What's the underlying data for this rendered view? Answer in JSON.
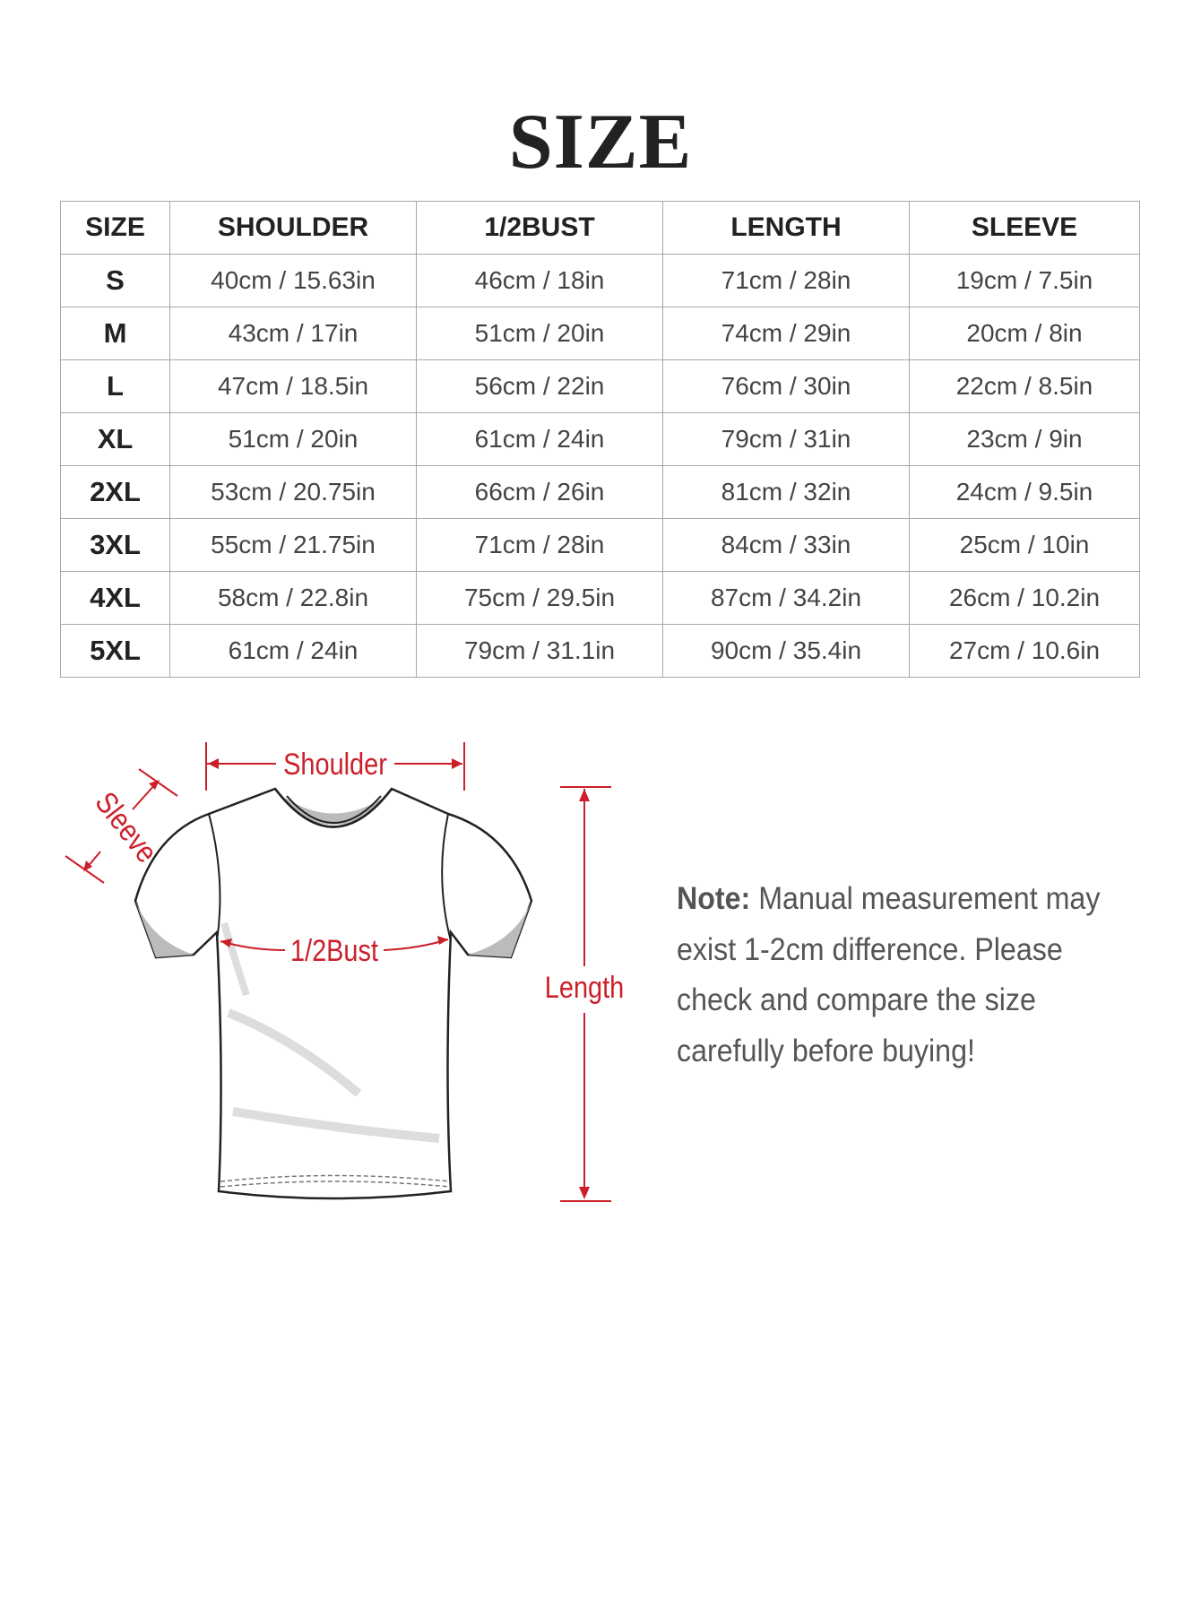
{
  "title": "SIZE",
  "table": {
    "headers": [
      "SIZE",
      "SHOULDER",
      "1/2BUST",
      "LENGTH",
      "SLEEVE"
    ],
    "rows": [
      [
        "S",
        "40cm / 15.63in",
        "46cm / 18in",
        "71cm / 28in",
        "19cm / 7.5in"
      ],
      [
        "M",
        "43cm / 17in",
        "51cm / 20in",
        "74cm / 29in",
        "20cm / 8in"
      ],
      [
        "L",
        "47cm / 18.5in",
        "56cm / 22in",
        "76cm / 30in",
        "22cm / 8.5in"
      ],
      [
        "XL",
        "51cm / 20in",
        "61cm / 24in",
        "79cm / 31in",
        "23cm / 9in"
      ],
      [
        "2XL",
        "53cm / 20.75in",
        "66cm / 26in",
        "81cm / 32in",
        "24cm / 9.5in"
      ],
      [
        "3XL",
        "55cm / 21.75in",
        "71cm / 28in",
        "84cm / 33in",
        "25cm / 10in"
      ],
      [
        "4XL",
        "58cm / 22.8in",
        "75cm / 29.5in",
        "87cm / 34.2in",
        "26cm / 10.2in"
      ],
      [
        "5XL",
        "61cm / 24in",
        "79cm / 31.1in",
        "90cm / 35.4in",
        "27cm / 10.6in"
      ]
    ]
  },
  "diagram": {
    "shoulder_label": "Shoulder",
    "sleeve_label": "Sleeve",
    "bust_label": "1/2Bust",
    "length_label": "Length",
    "accent_color": "#cc1f2a",
    "icon": "t-shirt-outline"
  },
  "note": {
    "label": "Note:",
    "text": " Manual measurement may exist 1-2cm difference. Please check and compare the size carefully before buying!"
  }
}
